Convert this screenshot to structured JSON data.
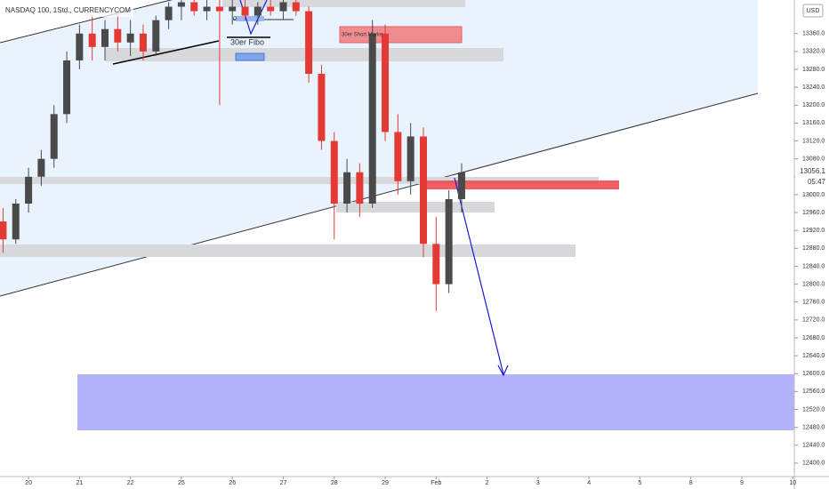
{
  "chart_data": {
    "type": "candlestick",
    "title": "NASDAQ 100, 1Std., CURRENCYCOM",
    "currency": "USD",
    "annotations": {
      "fibo": "30er Fibo",
      "fibo_level": "0",
      "short": "30er Short Marke",
      "last_price": "13056.1",
      "countdown": "05:47"
    },
    "up_color": "#4a4a4a",
    "down_color": "#e53935",
    "x": [
      -0.5,
      -0.25,
      0,
      0.25,
      0.5,
      0.75,
      1,
      1.25,
      1.5,
      1.75,
      2,
      2.25,
      2.5,
      2.75,
      3,
      3.25,
      3.5,
      3.75,
      4,
      4.25,
      4.5,
      4.75,
      5,
      5.25,
      5.5,
      5.75,
      6,
      6.25,
      6.5,
      6.75,
      7,
      7.25,
      7.5,
      7.75,
      8,
      8.25,
      8.5
    ],
    "open": [
      12940,
      12900,
      12980,
      13040,
      13080,
      13180,
      13300,
      13360,
      13330,
      13370,
      13340,
      13360,
      13320,
      13390,
      13420,
      13430,
      13410,
      13420,
      13410,
      13420,
      13400,
      13420,
      13410,
      13430,
      13410,
      13270,
      13120,
      12980,
      13050,
      12980,
      13360,
      13140,
      13030,
      13130,
      12890,
      12800,
      12990
    ],
    "high": [
      12970,
      12990,
      13060,
      13100,
      13200,
      13320,
      13380,
      13400,
      13390,
      13400,
      13390,
      13380,
      13400,
      13430,
      13440,
      13440,
      13440,
      13440,
      13440,
      13440,
      13430,
      13440,
      13440,
      13440,
      13420,
      13290,
      13140,
      13080,
      13070,
      13390,
      13380,
      13180,
      13160,
      13150,
      12950,
      13010,
      13070
    ],
    "low": [
      12870,
      12890,
      12960,
      13020,
      13060,
      13160,
      13280,
      13300,
      13300,
      13320,
      13310,
      13300,
      13310,
      13370,
      13390,
      13400,
      13390,
      13200,
      13380,
      13390,
      13380,
      13400,
      13390,
      13400,
      13250,
      13100,
      12900,
      12960,
      12950,
      12970,
      13120,
      13000,
      13000,
      12860,
      12740,
      12780,
      12960
    ],
    "close": [
      12900,
      12980,
      13040,
      13080,
      13180,
      13300,
      13360,
      13330,
      13370,
      13340,
      13360,
      13320,
      13390,
      13420,
      13430,
      13410,
      13420,
      13410,
      13420,
      13400,
      13420,
      13410,
      13430,
      13410,
      13270,
      13120,
      12980,
      13050,
      12980,
      13360,
      13140,
      13030,
      13130,
      12890,
      12800,
      12990,
      13050
    ],
    "xlim": [
      -0.56,
      15.03
    ],
    "xticks": [
      {
        "value": 0,
        "label": "20"
      },
      {
        "value": 1,
        "label": "21"
      },
      {
        "value": 2,
        "label": "22"
      },
      {
        "value": 3,
        "label": "25"
      },
      {
        "value": 4,
        "label": "26"
      },
      {
        "value": 5,
        "label": "27"
      },
      {
        "value": 6,
        "label": "28"
      },
      {
        "value": 7,
        "label": "29"
      },
      {
        "value": 8,
        "label": "Feb"
      },
      {
        "value": 9,
        "label": "2"
      },
      {
        "value": 10,
        "label": "3"
      },
      {
        "value": 11,
        "label": "4"
      },
      {
        "value": 12,
        "label": "5"
      },
      {
        "value": 13,
        "label": "8"
      },
      {
        "value": 14,
        "label": "9"
      },
      {
        "value": 15,
        "label": "10"
      }
    ],
    "ylim": [
      12370,
      13435
    ],
    "yticks": [
      {
        "value": 12400,
        "label": "12400.0"
      },
      {
        "value": 12440,
        "label": "12440.0"
      },
      {
        "value": 12480,
        "label": "12480.0"
      },
      {
        "value": 12520,
        "label": "12520.0"
      },
      {
        "value": 12560,
        "label": "12560.0"
      },
      {
        "value": 12600,
        "label": "12600.0"
      },
      {
        "value": 12640,
        "label": "12640.0"
      },
      {
        "value": 12680,
        "label": "12680.0"
      },
      {
        "value": 12720,
        "label": "12720.0"
      },
      {
        "value": 12760,
        "label": "12760.0"
      },
      {
        "value": 12800,
        "label": "12800.0"
      },
      {
        "value": 12840,
        "label": "12840.0"
      },
      {
        "value": 12880,
        "label": "12880.0"
      },
      {
        "value": 12920,
        "label": "12920.0"
      },
      {
        "value": 12960,
        "label": "12960.0"
      },
      {
        "value": 13000,
        "label": "13000.0"
      },
      {
        "value": 13040,
        "label": "13040.0"
      },
      {
        "value": 13080,
        "label": "13080.0"
      },
      {
        "value": 13120,
        "label": "13120.0"
      },
      {
        "value": 13160,
        "label": "13160.0"
      },
      {
        "value": 13200,
        "label": "13200.0"
      },
      {
        "value": 13240,
        "label": "13240.0"
      },
      {
        "value": 13280,
        "label": "13280.0"
      },
      {
        "value": 13320,
        "label": "13320.0"
      },
      {
        "value": 13360,
        "label": "13360.0"
      }
    ]
  }
}
